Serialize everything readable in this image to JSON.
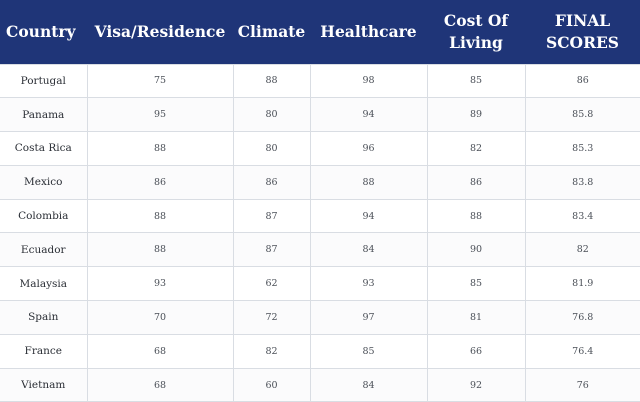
{
  "headers": {
    "country": "Country",
    "visa": "Visa/Residence",
    "climate": "Climate",
    "healthcare": "Healthcare",
    "cost_line1": "Cost Of",
    "cost_line2": "Living",
    "final_line1": "FINAL",
    "final_line2": "SCORES"
  },
  "rows": [
    {
      "country": "Portugal",
      "visa": "75",
      "climate": "88",
      "healthcare": "98",
      "cost": "85",
      "final": "86"
    },
    {
      "country": "Panama",
      "visa": "95",
      "climate": "80",
      "healthcare": "94",
      "cost": "89",
      "final": "85.8"
    },
    {
      "country": "Costa Rica",
      "visa": "88",
      "climate": "80",
      "healthcare": "96",
      "cost": "82",
      "final": "85.3"
    },
    {
      "country": "Mexico",
      "visa": "86",
      "climate": "86",
      "healthcare": "88",
      "cost": "86",
      "final": "83.8"
    },
    {
      "country": "Colombia",
      "visa": "88",
      "climate": "87",
      "healthcare": "94",
      "cost": "88",
      "final": "83.4"
    },
    {
      "country": "Ecuador",
      "visa": "88",
      "climate": "87",
      "healthcare": "84",
      "cost": "90",
      "final": "82"
    },
    {
      "country": "Malaysia",
      "visa": "93",
      "climate": "62",
      "healthcare": "93",
      "cost": "85",
      "final": "81.9"
    },
    {
      "country": "Spain",
      "visa": "70",
      "climate": "72",
      "healthcare": "97",
      "cost": "81",
      "final": "76.8"
    },
    {
      "country": "France",
      "visa": "68",
      "climate": "82",
      "healthcare": "85",
      "cost": "66",
      "final": "76.4"
    },
    {
      "country": "Vietnam",
      "visa": "68",
      "climate": "60",
      "healthcare": "84",
      "cost": "92",
      "final": "76"
    }
  ]
}
